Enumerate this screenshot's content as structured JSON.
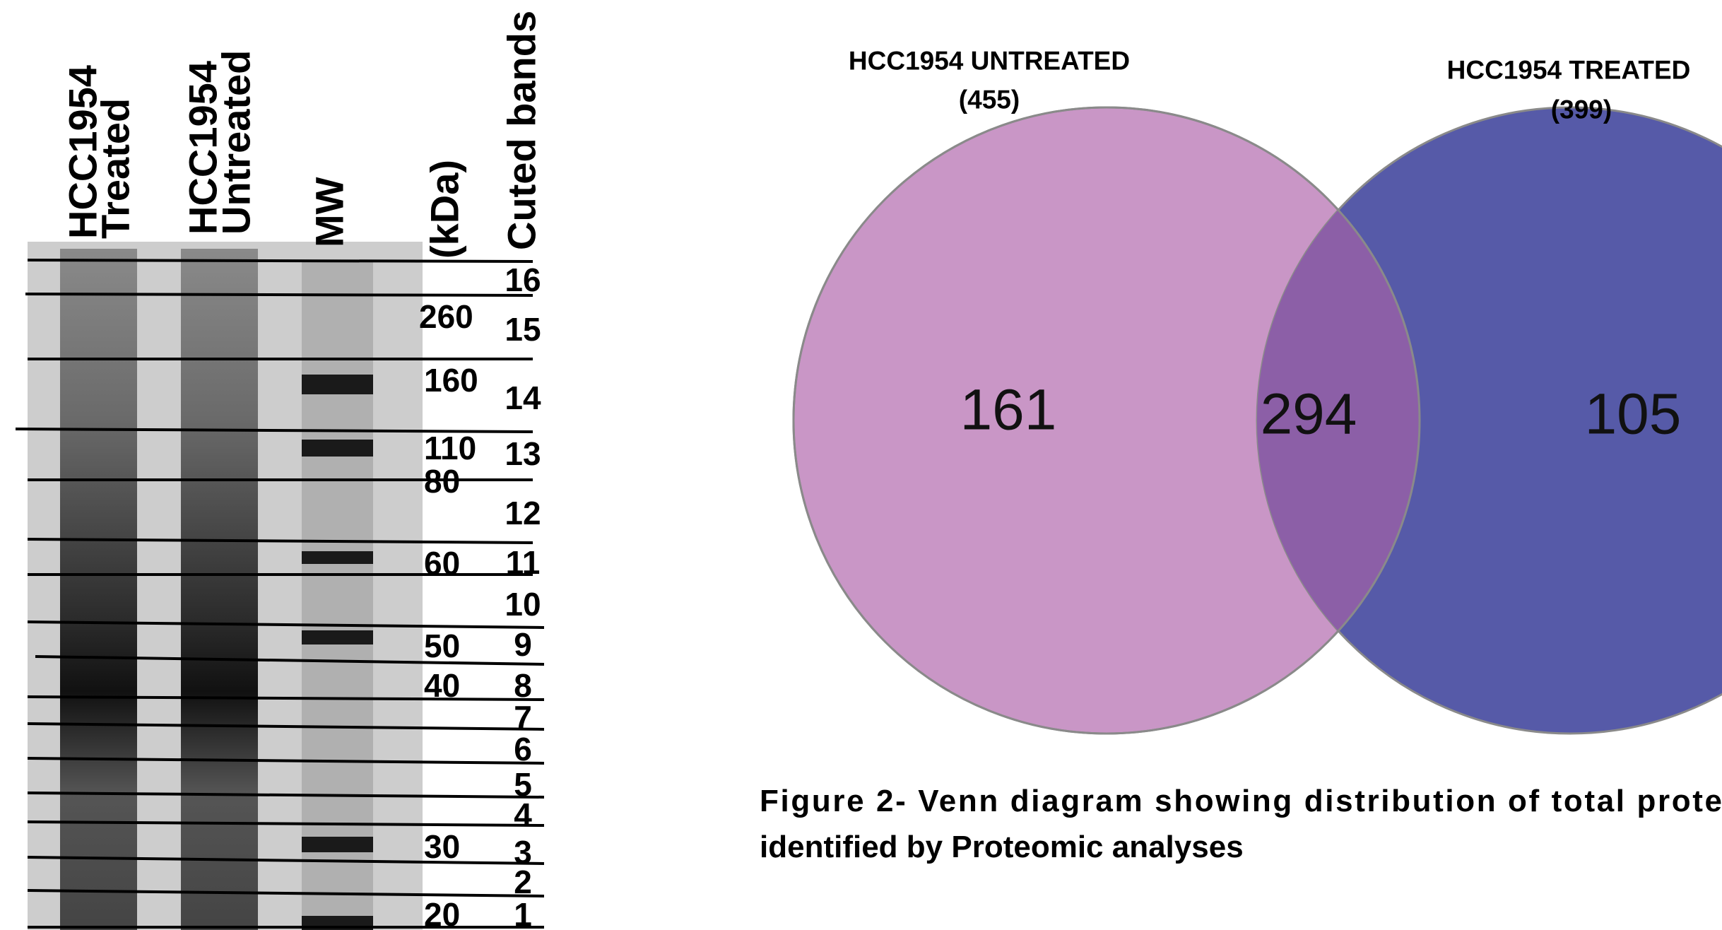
{
  "gel": {
    "lanes": [
      {
        "line1": "HCC1954",
        "line2": "Treated"
      },
      {
        "line1": "HCC1954",
        "line2": "Untreated"
      },
      {
        "line1": "MW"
      }
    ],
    "unit": "(kDa)",
    "bands_title": "Cuted bands",
    "mw_markers": [
      "260",
      "160",
      "110",
      "80",
      "60",
      "50",
      "40",
      "30",
      "20"
    ],
    "bands": [
      "16",
      "15",
      "14",
      "13",
      "12",
      "11",
      "10",
      "9",
      "8",
      "7",
      "6",
      "5",
      "4",
      "3",
      "2",
      "1"
    ]
  },
  "venn": {
    "left_label": "HCC1954 UNTREATED",
    "left_total": "(455)",
    "right_label": "HCC1954 TREATED",
    "right_total": "(399)",
    "left_only": "161",
    "overlap": "294",
    "right_only": "105"
  },
  "caption": {
    "line1": "Figure 2- Venn diagram showing distribution of total prote",
    "line2": "identified by Proteomic analyses"
  }
}
